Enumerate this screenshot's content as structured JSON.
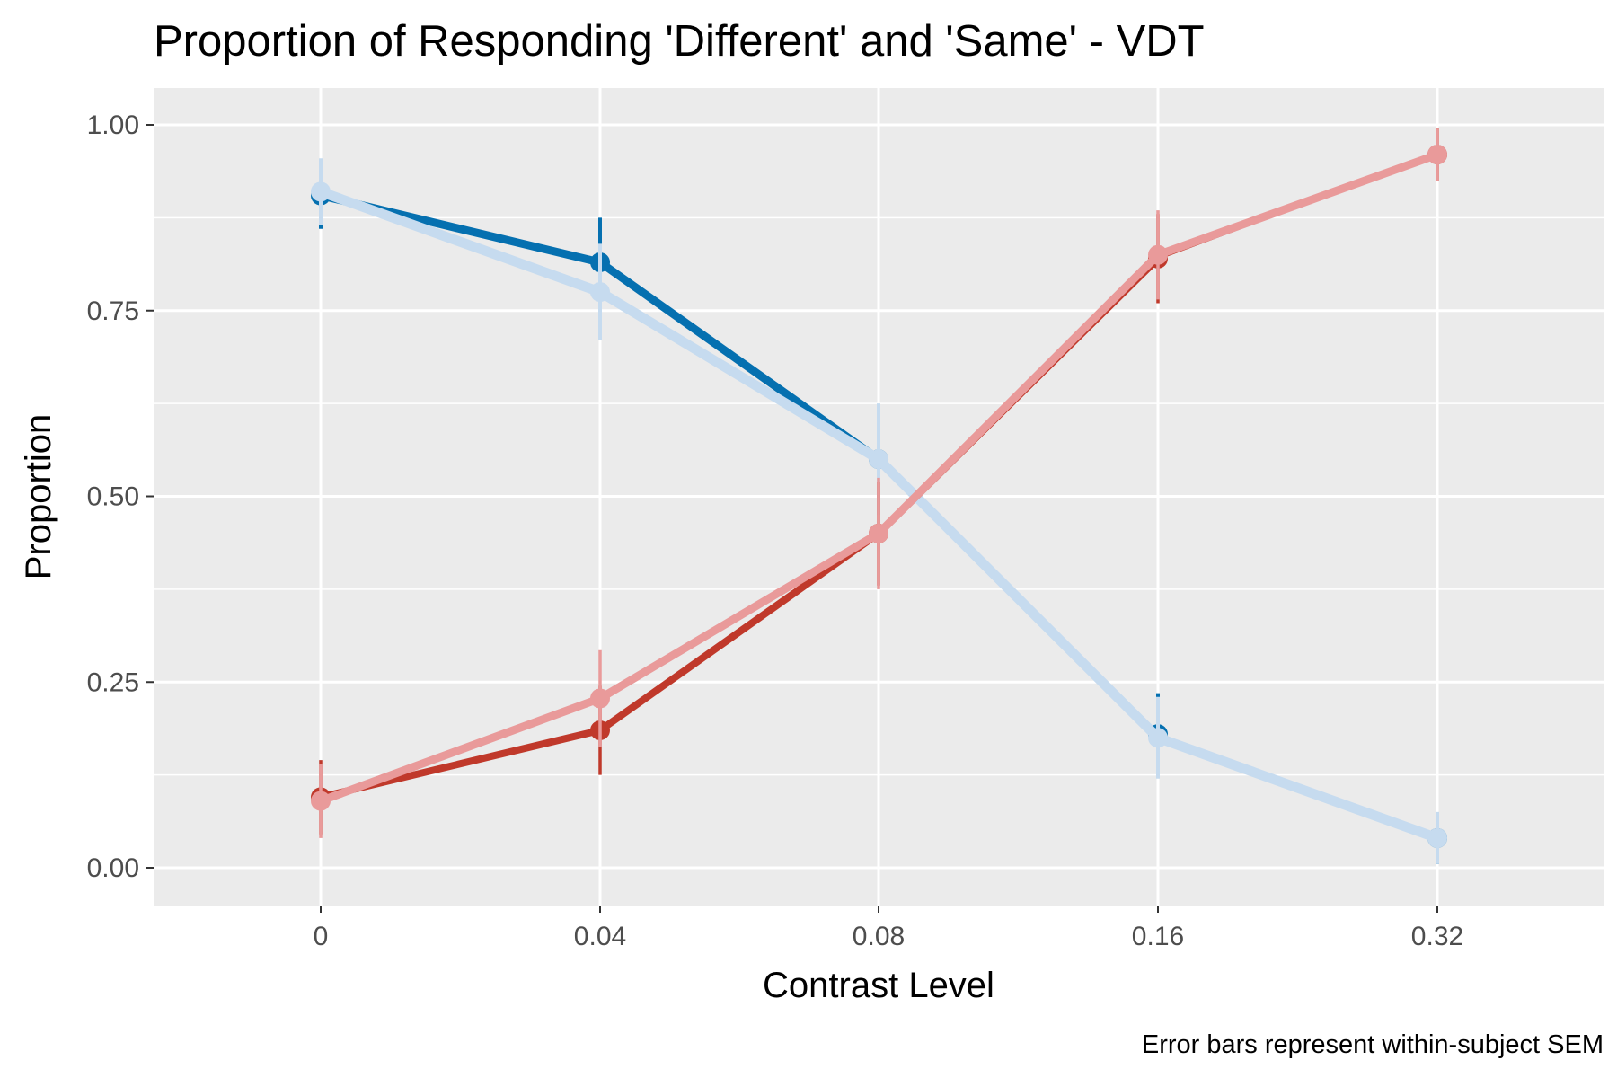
{
  "chart_data": {
    "type": "line",
    "title": "Proportion of Responding 'Different' and 'Same' - VDT",
    "xlabel": "Contrast Level",
    "ylabel": "Proportion",
    "caption": "Error bars represent within-subject SEM",
    "categories": [
      "0",
      "0.04",
      "0.08",
      "0.16",
      "0.32"
    ],
    "ylim": [
      -0.05,
      1.05
    ],
    "yticks": [
      0,
      0.25,
      0.5,
      0.75,
      1
    ],
    "ytick_labels": [
      "0.00",
      "0.25",
      "0.50",
      "0.75",
      "1.00"
    ],
    "grid": true,
    "legend": "none",
    "series": [
      {
        "color": "#0570b0",
        "width": "thick-to-thin",
        "values": [
          0.905,
          0.815,
          0.55,
          0.18,
          0.04
        ],
        "error": [
          0.045,
          0.06,
          0.07,
          0.055,
          0.035
        ]
      },
      {
        "color": "#c6dbef",
        "values": [
          0.91,
          0.775,
          0.55,
          0.175,
          0.04
        ],
        "error": [
          0.045,
          0.065,
          0.075,
          0.055,
          0.035
        ]
      },
      {
        "color": "#c0392b",
        "values": [
          0.095,
          0.185,
          0.45,
          0.82,
          0.96
        ],
        "error": [
          0.05,
          0.06,
          0.07,
          0.06,
          0.035
        ]
      },
      {
        "color": "#e99a9a",
        "values": [
          0.09,
          0.228,
          0.45,
          0.825,
          0.96
        ],
        "error": [
          0.05,
          0.065,
          0.075,
          0.06,
          0.035
        ]
      }
    ]
  },
  "style": {
    "panel_background": "#ebebeb",
    "grid_color": "#ffffff",
    "tick_label_color": "#4d4d4d"
  }
}
